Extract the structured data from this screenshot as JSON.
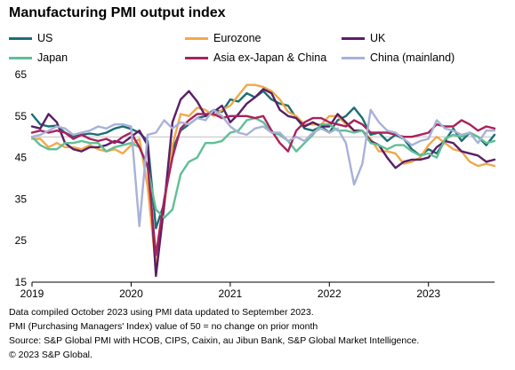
{
  "header": {
    "title": "Manufacturing PMI output index"
  },
  "footnotes": [
    "Data compiled October 2023 using PMI data updated to September 2023.",
    "PMI (Purchasing Managers' Index) value of 50 = no change on prior month",
    "Source: S&P Global PMI with HCOB, CIPS, Caixin, au Jibun Bank, S&P Global Market Intelligence.",
    "© 2023 S&P Global."
  ],
  "chart_data": {
    "type": "line",
    "title": "Manufacturing PMI output index",
    "xlabel": "",
    "ylabel": "",
    "ylim": [
      15,
      65
    ],
    "yticks": [
      15,
      25,
      35,
      45,
      55,
      65
    ],
    "xlim": [
      "2019-01",
      "2023-09"
    ],
    "xticks": [
      "2019",
      "2020",
      "2021",
      "2022",
      "2023"
    ],
    "reference_line": 50,
    "grid": false,
    "legend_position": "top",
    "x": [
      "2019-01",
      "2019-02",
      "2019-03",
      "2019-04",
      "2019-05",
      "2019-06",
      "2019-07",
      "2019-08",
      "2019-09",
      "2019-10",
      "2019-11",
      "2019-12",
      "2020-01",
      "2020-02",
      "2020-03",
      "2020-04",
      "2020-05",
      "2020-06",
      "2020-07",
      "2020-08",
      "2020-09",
      "2020-10",
      "2020-11",
      "2020-12",
      "2021-01",
      "2021-02",
      "2021-03",
      "2021-04",
      "2021-05",
      "2021-06",
      "2021-07",
      "2021-08",
      "2021-09",
      "2021-10",
      "2021-11",
      "2021-12",
      "2022-01",
      "2022-02",
      "2022-03",
      "2022-04",
      "2022-05",
      "2022-06",
      "2022-07",
      "2022-08",
      "2022-09",
      "2022-10",
      "2022-11",
      "2022-12",
      "2023-01",
      "2023-02",
      "2023-03",
      "2023-04",
      "2023-05",
      "2023-06",
      "2023-07",
      "2023-08",
      "2023-09"
    ],
    "series": [
      {
        "name": "US",
        "color": "#1c6e72",
        "values": [
          55.4,
          53.0,
          52.5,
          52.7,
          51.0,
          50.0,
          50.5,
          50.8,
          50.5,
          51.0,
          52.0,
          52.5,
          51.9,
          51.0,
          49.0,
          28.0,
          34.0,
          47.0,
          51.5,
          53.0,
          54.5,
          55.0,
          56.5,
          56.0,
          59.0,
          58.5,
          60.5,
          59.5,
          61.0,
          59.0,
          58.0,
          57.5,
          54.5,
          52.0,
          51.5,
          52.5,
          51.0,
          54.0,
          55.0,
          57.0,
          54.5,
          50.5,
          51.0,
          49.0,
          50.5,
          49.5,
          47.0,
          45.5,
          47.0,
          46.0,
          49.0,
          52.0,
          49.0,
          51.0,
          50.0,
          48.0,
          50.5
        ]
      },
      {
        "name": "Eurozone",
        "color": "#f0a94a",
        "values": [
          49.5,
          49.5,
          47.5,
          48.5,
          47.5,
          47.5,
          47.0,
          48.0,
          47.0,
          46.5,
          47.0,
          46.0,
          48.0,
          49.5,
          38.0,
          18.5,
          33.5,
          48.0,
          55.5,
          55.0,
          57.0,
          56.5,
          55.0,
          56.5,
          57.5,
          60.0,
          62.5,
          62.5,
          62.0,
          61.0,
          59.0,
          56.0,
          55.0,
          53.0,
          53.0,
          53.0,
          55.0,
          55.0,
          53.0,
          51.5,
          51.5,
          49.5,
          46.5,
          46.5,
          46.0,
          43.5,
          44.0,
          45.0,
          48.0,
          50.0,
          48.5,
          47.0,
          46.5,
          44.0,
          43.0,
          43.5,
          43.0
        ]
      },
      {
        "name": "UK",
        "color": "#5a1e67",
        "values": [
          52.5,
          52.0,
          55.5,
          53.5,
          48.5,
          47.0,
          46.5,
          47.5,
          47.5,
          48.0,
          49.0,
          48.5,
          50.0,
          51.5,
          48.0,
          16.5,
          33.5,
          53.5,
          59.0,
          61.0,
          58.5,
          55.0,
          56.0,
          57.5,
          53.5,
          55.5,
          58.0,
          59.5,
          61.5,
          60.5,
          56.5,
          55.0,
          54.5,
          52.5,
          53.5,
          52.5,
          52.5,
          55.5,
          53.5,
          51.5,
          51.5,
          49.0,
          48.0,
          45.0,
          42.5,
          44.0,
          44.5,
          44.5,
          45.0,
          47.5,
          49.0,
          48.5,
          46.5,
          46.0,
          45.5,
          44.0,
          44.5
        ]
      },
      {
        "name": "Japan",
        "color": "#5fbf95",
        "values": [
          50.0,
          48.0,
          47.0,
          47.0,
          48.5,
          48.5,
          49.0,
          48.5,
          48.5,
          46.5,
          47.5,
          48.0,
          48.5,
          47.5,
          42.5,
          32.5,
          30.5,
          32.5,
          41.0,
          44.0,
          45.0,
          48.5,
          48.5,
          49.0,
          51.0,
          51.5,
          54.0,
          54.5,
          53.5,
          51.0,
          50.5,
          49.0,
          46.5,
          48.5,
          50.5,
          53.0,
          53.0,
          51.5,
          51.5,
          51.0,
          51.5,
          48.5,
          48.0,
          47.0,
          48.0,
          48.0,
          46.5,
          45.5,
          46.0,
          45.0,
          49.5,
          50.5,
          50.0,
          51.0,
          50.0,
          48.5,
          49.0
        ]
      },
      {
        "name": "Asia ex-Japan & China",
        "color": "#a8235b",
        "values": [
          51.0,
          51.5,
          51.0,
          51.5,
          51.0,
          49.5,
          50.5,
          49.5,
          49.0,
          49.5,
          48.5,
          50.0,
          51.0,
          47.5,
          43.0,
          21.5,
          35.0,
          45.0,
          52.0,
          54.0,
          55.5,
          55.5,
          55.5,
          54.5,
          55.0,
          55.0,
          55.0,
          54.5,
          55.0,
          51.5,
          48.5,
          46.5,
          51.5,
          53.5,
          54.5,
          54.5,
          53.5,
          53.0,
          52.5,
          54.0,
          53.0,
          51.0,
          51.0,
          51.0,
          50.5,
          50.0,
          50.0,
          50.5,
          51.0,
          53.0,
          52.5,
          52.5,
          54.0,
          53.0,
          51.5,
          52.5,
          52.0
        ]
      },
      {
        "name": "China (mainland)",
        "color": "#a8b1d9",
        "values": [
          50.0,
          50.5,
          51.5,
          52.5,
          52.0,
          50.5,
          51.0,
          51.5,
          52.5,
          52.0,
          53.0,
          53.0,
          52.5,
          28.5,
          50.5,
          51.0,
          54.0,
          52.0,
          53.5,
          53.0,
          54.5,
          54.0,
          56.5,
          55.0,
          52.5,
          51.0,
          50.5,
          52.0,
          52.5,
          51.0,
          51.0,
          49.0,
          50.0,
          49.0,
          51.0,
          52.0,
          51.0,
          52.0,
          48.5,
          38.5,
          43.5,
          56.5,
          53.5,
          51.5,
          51.0,
          49.5,
          48.0,
          49.0,
          49.5,
          54.0,
          52.0,
          51.5,
          50.5,
          51.0,
          48.5,
          51.5,
          51.5
        ]
      }
    ]
  }
}
